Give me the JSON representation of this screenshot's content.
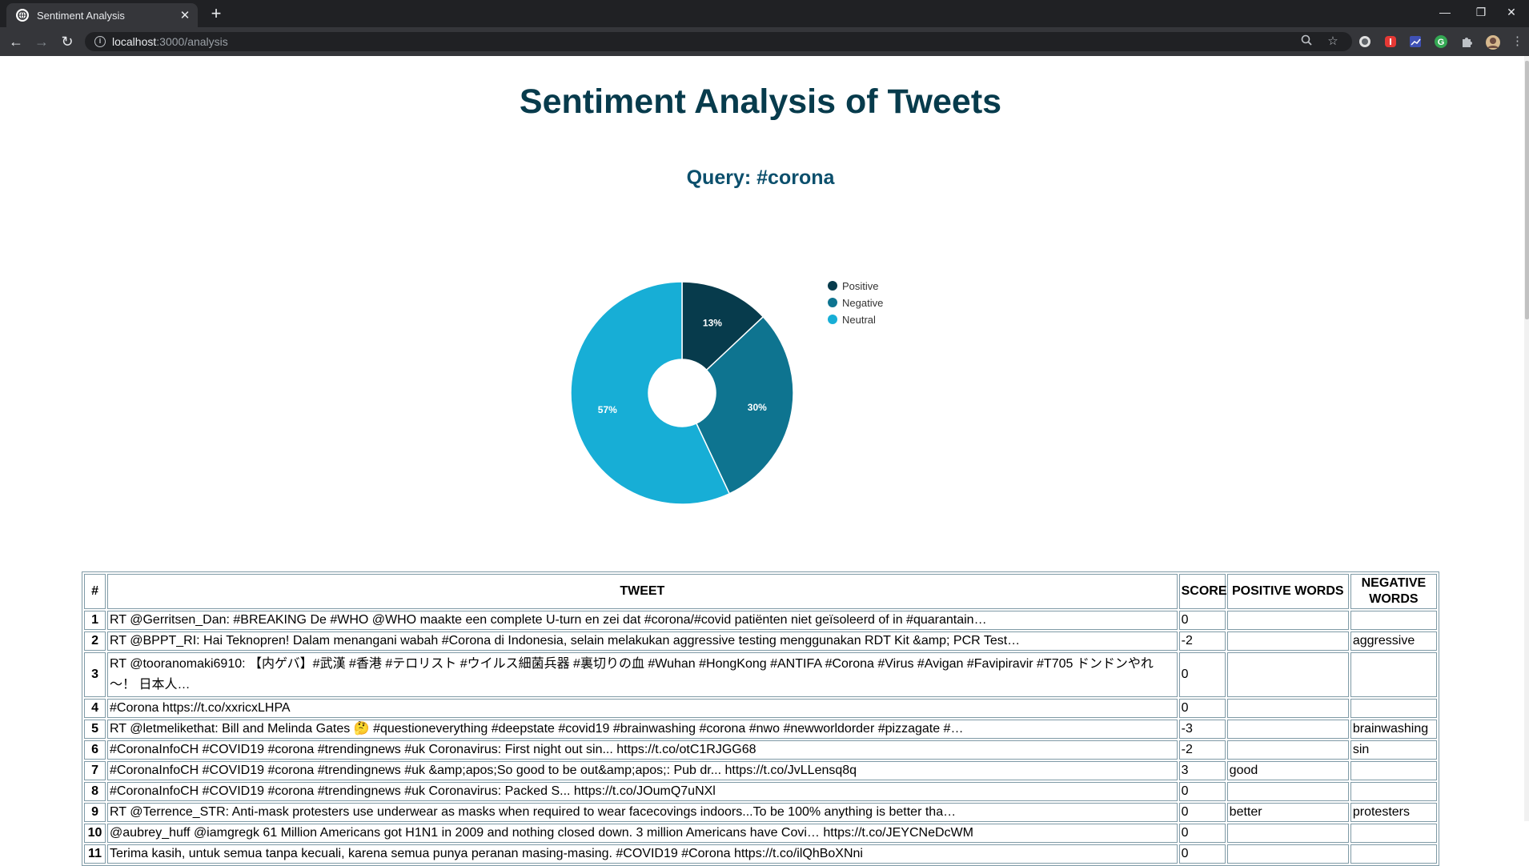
{
  "browser": {
    "tab_title": "Sentiment Analysis",
    "tab_close": "✕",
    "new_tab": "+",
    "url_host": "localhost",
    "url_path": ":3000/analysis",
    "window_controls": {
      "minimize": "—",
      "restore": "❐",
      "close": "✕"
    },
    "nav": {
      "back": "←",
      "forward": "→",
      "reload": "↻"
    },
    "extension_colors": [
      "#e0e0e0",
      "#e53935",
      "#3f51b5",
      "#34a853",
      "#9e9e9e"
    ]
  },
  "page": {
    "title": "Sentiment Analysis of Tweets",
    "query_title": "Query: #corona"
  },
  "chart_data": {
    "type": "pie",
    "donut": true,
    "legend_position": "right",
    "categories": [
      "Positive",
      "Negative",
      "Neutral"
    ],
    "values": [
      13,
      30,
      57
    ],
    "labels": [
      "13%",
      "30%",
      "57%"
    ],
    "colors": [
      "#073b4c",
      "#0e7490",
      "#17aed6"
    ]
  },
  "table": {
    "headers": [
      "#",
      "TWEET",
      "SCORE",
      "POSITIVE WORDS",
      "NEGATIVE WORDS"
    ],
    "rows": [
      {
        "num": "1",
        "tweet": "RT @Gerritsen_Dan: #BREAKING De #WHO @WHO maakte een complete U-turn en zei dat #corona/#covid patiënten niet geïsoleerd of in #quarantain…",
        "score": "0",
        "positive": "",
        "negative": ""
      },
      {
        "num": "2",
        "tweet": "RT @BPPT_RI: Hai Teknopren! Dalam menangani wabah #Corona di Indonesia, selain melakukan aggressive testing menggunakan RDT Kit &amp; PCR Test…",
        "score": "-2",
        "positive": "",
        "negative": "aggressive"
      },
      {
        "num": "3",
        "tweet": "RT @tooranomaki6910: 【内ゲバ】#武漢 #香港 #テロリスト #ウイルス細菌兵器 #裏切りの血 #Wuhan #HongKong #ANTIFA #Corona #Virus #Avigan #Favipiravir #T705 ドンドンやれ～！ 日本人…",
        "score": "0",
        "positive": "",
        "negative": ""
      },
      {
        "num": "4",
        "tweet": "#Corona https://t.co/xxricxLHPA",
        "score": "0",
        "positive": "",
        "negative": ""
      },
      {
        "num": "5",
        "tweet": "RT @letmelikethat: Bill and Melinda Gates 🤔 #questioneverything #deepstate #covid19 #brainwashing #corona #nwo #newworldorder #pizzagate #…",
        "score": "-3",
        "positive": "",
        "negative": "brainwashing"
      },
      {
        "num": "6",
        "tweet": "#CoronaInfoCH #COVID19 #corona #trendingnews #uk Coronavirus: First night out sin... https://t.co/otC1RJGG68",
        "score": "-2",
        "positive": "",
        "negative": "sin"
      },
      {
        "num": "7",
        "tweet": "#CoronaInfoCH #COVID19 #corona #trendingnews #uk &amp;apos;So good to be out&amp;apos;: Pub dr... https://t.co/JvLLensq8q",
        "score": "3",
        "positive": "good",
        "negative": ""
      },
      {
        "num": "8",
        "tweet": "#CoronaInfoCH #COVID19 #corona #trendingnews #uk Coronavirus: Packed S... https://t.co/JOumQ7uNXl",
        "score": "0",
        "positive": "",
        "negative": ""
      },
      {
        "num": "9",
        "tweet": "RT @Terrence_STR: Anti-mask protesters use underwear as masks when required to wear facecovings indoors...To be 100% anything is better tha…",
        "score": "0",
        "positive": "better",
        "negative": "protesters"
      },
      {
        "num": "10",
        "tweet": "@aubrey_huff @iamgregk 61 Million Americans got H1N1 in 2009 and nothing closed down. 3 million Americans have Covi… https://t.co/JEYCNeDcWM",
        "score": "0",
        "positive": "",
        "negative": ""
      },
      {
        "num": "11",
        "tweet": "Terima kasih, untuk semua tanpa kecuali, karena semua punya peranan masing-masing. #COVID19 #Corona https://t.co/ilQhBoXNni",
        "score": "0",
        "positive": "",
        "negative": ""
      }
    ]
  }
}
